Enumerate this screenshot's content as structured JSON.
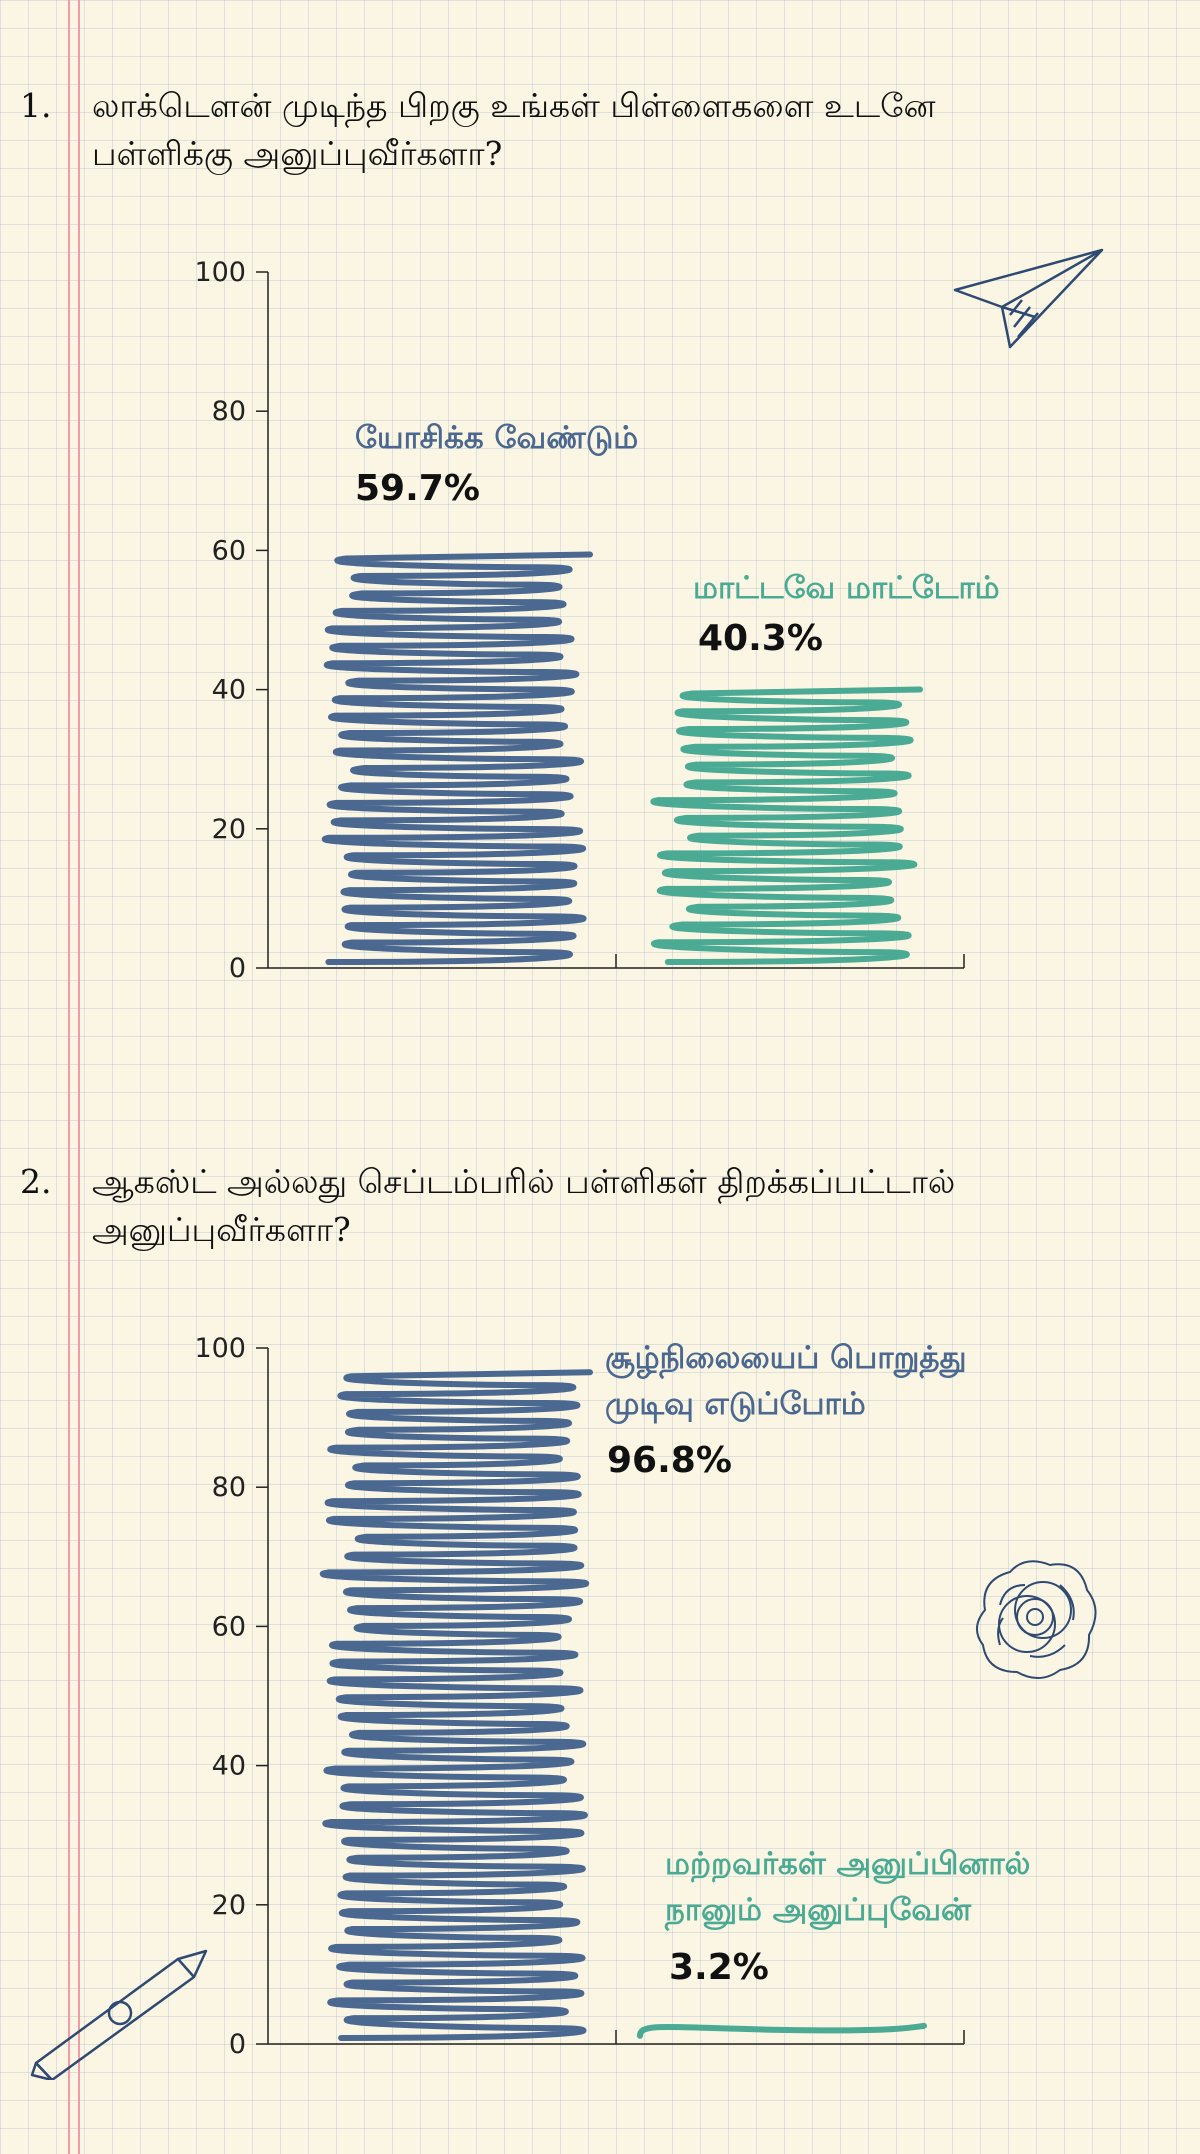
{
  "colors": {
    "blue": "#4a6890",
    "teal": "#4aaa94",
    "axis": "#222222",
    "paper": "#fbf5e3"
  },
  "questions": [
    {
      "number": "1.",
      "text": "லாக்டௌன் முடிந்த பிறகு உங்கள் பிள்ளைகளை உடனே பள்ளிக்கு அனுப்புவீர்களா?"
    },
    {
      "number": "2.",
      "text": "ஆகஸ்ட் அல்லது செப்டம்பரில் பள்ளிகள் திறக்கப்பட்டால் அனுப்புவீர்களா?"
    }
  ],
  "decorations": [
    "paper-plane-icon",
    "flower-doodle-icon",
    "pencil-icon"
  ],
  "chart_data": [
    {
      "type": "bar",
      "ylim": [
        0,
        100
      ],
      "yticks": [
        "0",
        "20",
        "40",
        "60",
        "80",
        "100"
      ],
      "categories": [
        "யோசிக்க வேண்டும்",
        "மாட்டவே மாட்டோம்"
      ],
      "values": [
        59.7,
        40.3
      ],
      "value_labels": [
        "59.7%",
        "40.3%"
      ],
      "colors": [
        "#4a6890",
        "#4aaa94"
      ]
    },
    {
      "type": "bar",
      "ylim": [
        0,
        100
      ],
      "yticks": [
        "0",
        "20",
        "40",
        "60",
        "80",
        "100"
      ],
      "categories": [
        "சூழ்நிலையைப் பொறுத்து முடிவு எடுப்போம்",
        "மற்றவர்கள் அனுப்பினால் நானும் அனுப்புவேன்"
      ],
      "values": [
        96.8,
        3.2
      ],
      "value_labels": [
        "96.8%",
        "3.2%"
      ],
      "colors": [
        "#4a6890",
        "#4aaa94"
      ]
    }
  ]
}
